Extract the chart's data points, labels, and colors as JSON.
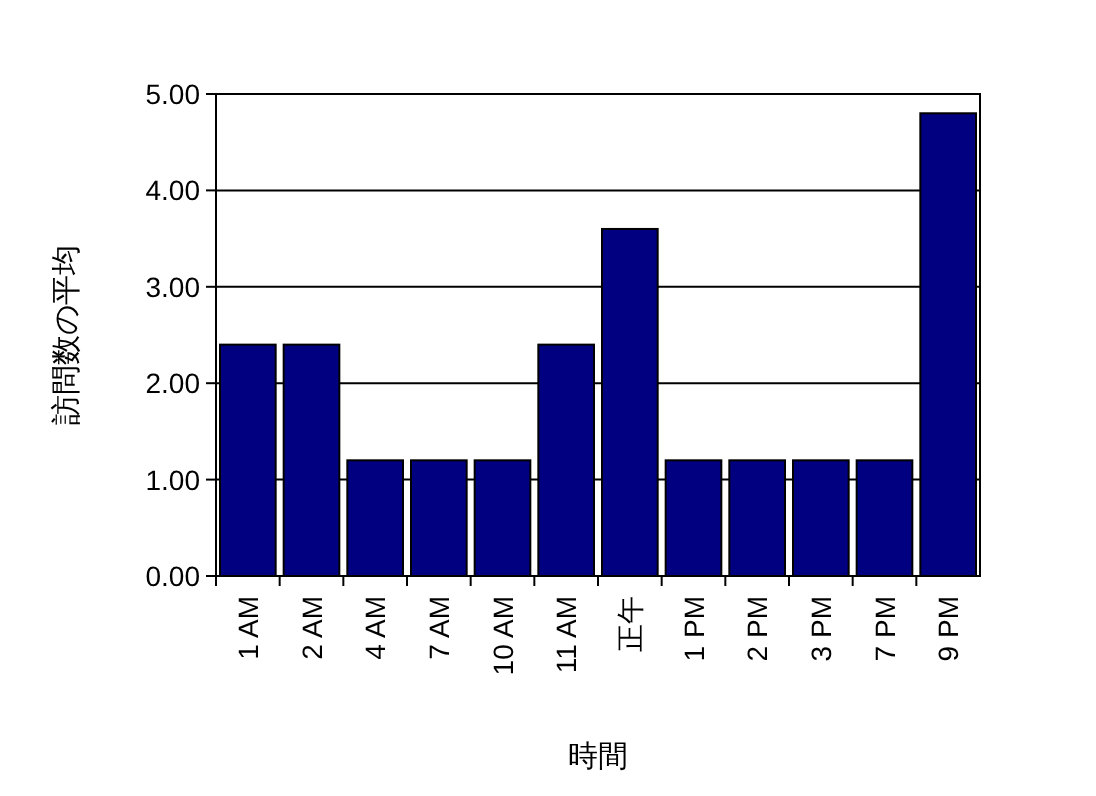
{
  "chart_data": {
    "type": "bar",
    "xlabel": "時間",
    "ylabel": "訪問数の平均",
    "categories": [
      "1 AM",
      "2 AM",
      "4 AM",
      "7 AM",
      "10 AM",
      "11 AM",
      "正午",
      "1 PM",
      "2 PM",
      "3 PM",
      "7 PM",
      "9 PM"
    ],
    "values": [
      2.4,
      2.4,
      1.2,
      1.2,
      1.2,
      2.4,
      3.6,
      1.2,
      1.2,
      1.2,
      1.2,
      4.8
    ],
    "color": "#000080",
    "ylim": [
      0,
      5
    ],
    "yticks": [
      {
        "value": 0,
        "label": "0.00"
      },
      {
        "value": 1,
        "label": "1.00"
      },
      {
        "value": 2,
        "label": "2.00"
      },
      {
        "value": 3,
        "label": "3.00"
      },
      {
        "value": 4,
        "label": "4.00"
      },
      {
        "value": 5,
        "label": "5.00"
      }
    ],
    "grid": "y"
  }
}
